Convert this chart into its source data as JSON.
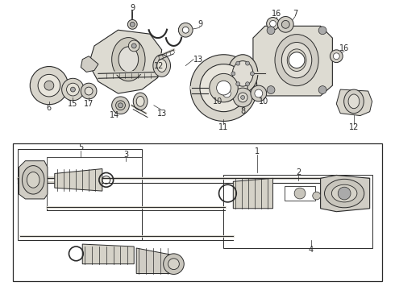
{
  "bg_color": "#ffffff",
  "line_color": "#2a2a2a",
  "fill_light": "#e8e6e0",
  "fill_mid": "#d0cdc5",
  "fill_dark": "#b0ada5",
  "figsize": [
    4.9,
    3.6
  ],
  "dpi": 100
}
